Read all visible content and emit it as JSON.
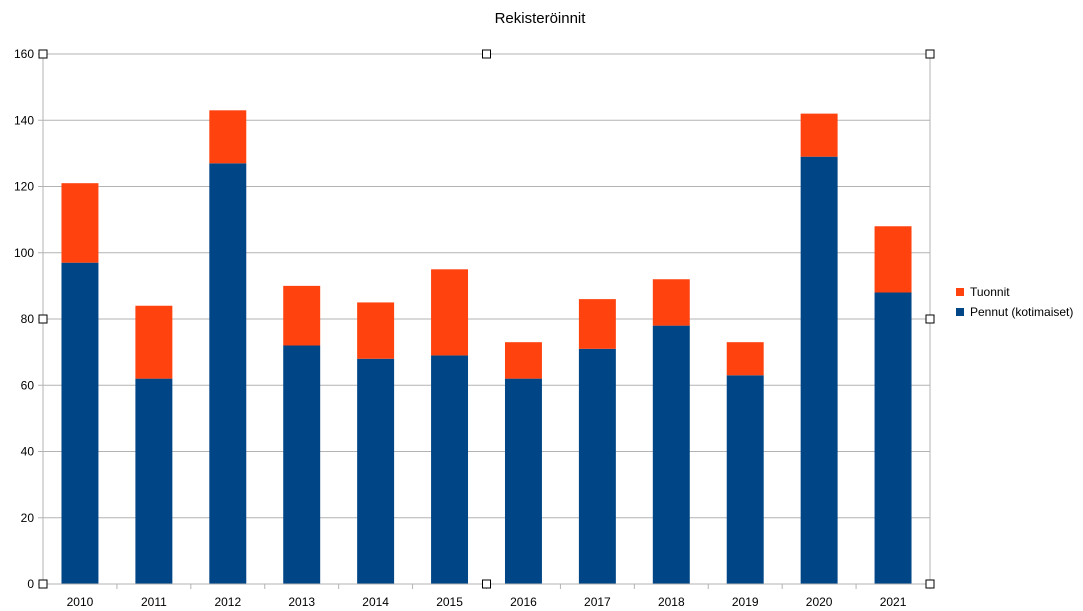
{
  "chart_data": {
    "type": "bar",
    "stacked": true,
    "title": "Rekisteröinnit",
    "xlabel": "",
    "ylabel": "",
    "categories": [
      "2010",
      "2011",
      "2012",
      "2013",
      "2014",
      "2015",
      "2016",
      "2017",
      "2018",
      "2019",
      "2020",
      "2021"
    ],
    "series": [
      {
        "name": "Pennut (kotimaiset)",
        "color": "#004586",
        "values": [
          97,
          62,
          127,
          72,
          68,
          69,
          62,
          71,
          78,
          63,
          129,
          88
        ]
      },
      {
        "name": "Tuonnit",
        "color": "#ff420e",
        "values": [
          24,
          22,
          16,
          18,
          17,
          26,
          11,
          15,
          14,
          10,
          13,
          20
        ]
      }
    ],
    "ylim": [
      0,
      160
    ],
    "yticks": [
      "0",
      "20",
      "40",
      "60",
      "80",
      "100",
      "120",
      "140",
      "160"
    ],
    "grid": true,
    "legend_position": "right",
    "legend_order": [
      "Tuonnit",
      "Pennut (kotimaiset)"
    ]
  }
}
